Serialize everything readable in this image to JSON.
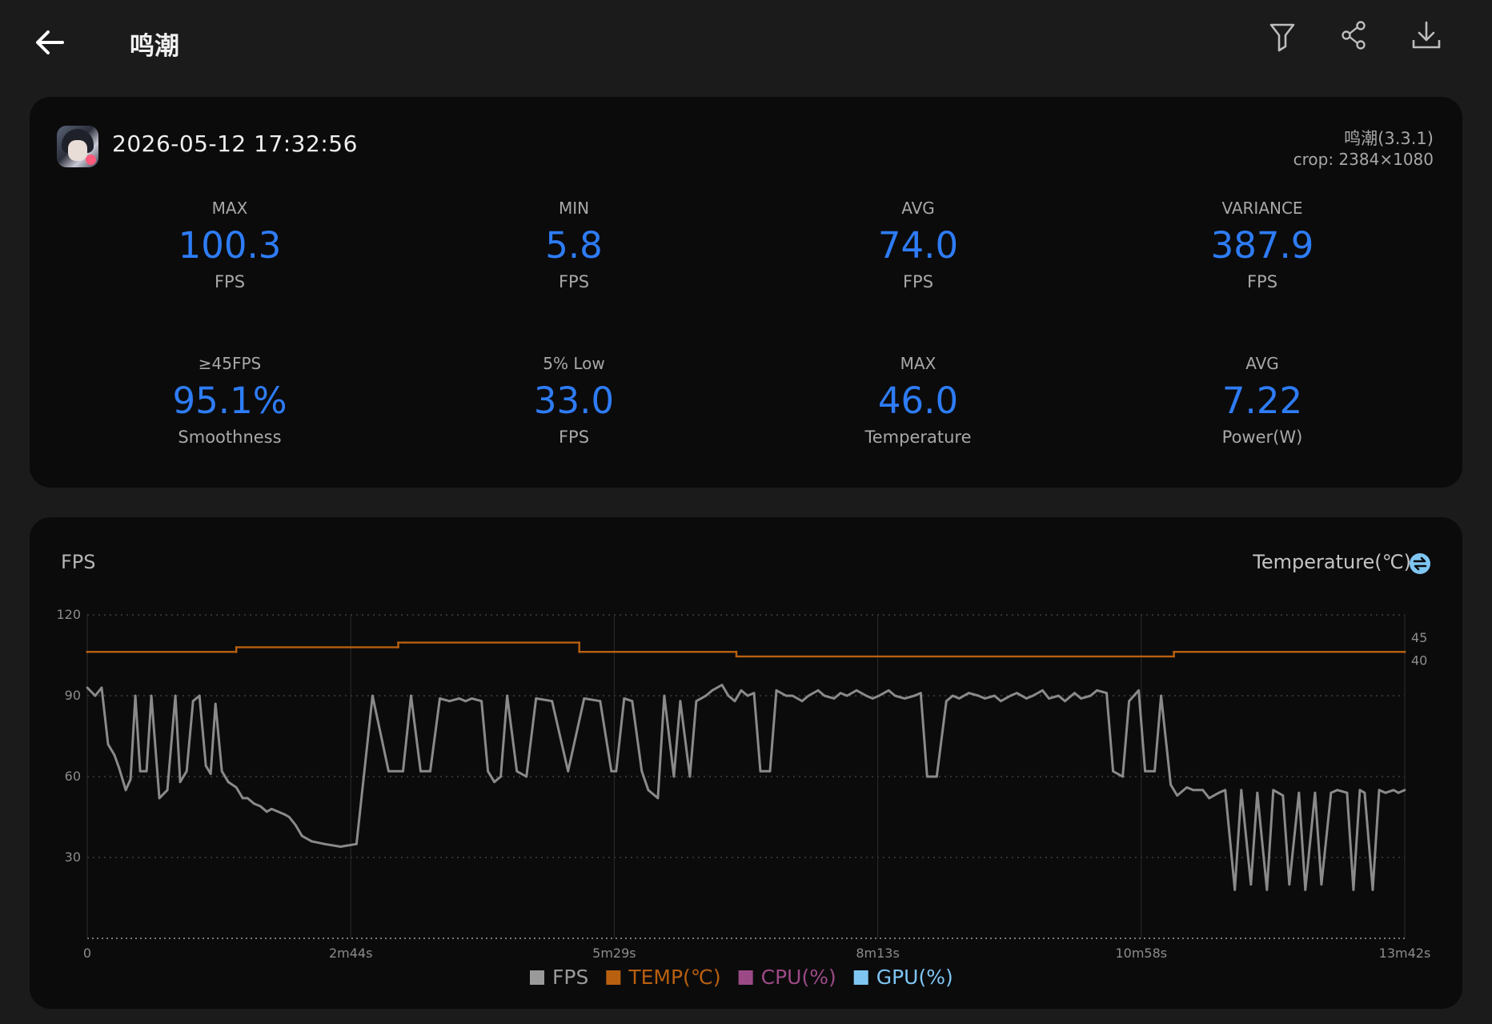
{
  "header": {
    "title": "鸣潮",
    "icons": [
      "back-arrow-icon",
      "filter-icon",
      "share-icon",
      "download-icon"
    ]
  },
  "session": {
    "timestamp": "2026-05-12 17:32:56",
    "app_version": "鸣潮(3.3.1)",
    "crop": "crop: 2384×1080"
  },
  "stats": [
    {
      "label": "MAX",
      "value": "100.3",
      "unit": "FPS"
    },
    {
      "label": "MIN",
      "value": "5.8",
      "unit": "FPS"
    },
    {
      "label": "AVG",
      "value": "74.0",
      "unit": "FPS"
    },
    {
      "label": "VARIANCE",
      "value": "387.9",
      "unit": "FPS"
    },
    {
      "label": "≥45FPS",
      "value": "95.1%",
      "unit": "Smoothness"
    },
    {
      "label": "5% Low",
      "value": "33.0",
      "unit": "FPS"
    },
    {
      "label": "MAX",
      "value": "46.0",
      "unit": "Temperature"
    },
    {
      "label": "AVG",
      "value": "7.22",
      "unit": "Power(W)"
    }
  ],
  "colors": {
    "accent": "#2e7cf6",
    "fps_line": "#8a8a8a",
    "temp_line": "#b8600f",
    "cpu": "#9c4a86",
    "gpu": "#7fc6f3"
  },
  "chart_data": {
    "type": "line",
    "left_axis_label": "FPS",
    "right_axis_label": "Temperature(℃)",
    "x_ticks": [
      "0",
      "2m44s",
      "5m29s",
      "8m13s",
      "10m58s",
      "13m42s"
    ],
    "x_range_seconds": [
      0,
      822
    ],
    "y_left_ticks": [
      "120",
      "90",
      "60",
      "30"
    ],
    "y_left_range": [
      0,
      120
    ],
    "y_right_ticks": [
      "45",
      "40"
    ],
    "y_right_range": [
      -20,
      50
    ],
    "legend": [
      {
        "name": "FPS",
        "color": "#9a9a9a"
      },
      {
        "name": "TEMP(℃)",
        "color": "#b8600f"
      },
      {
        "name": "CPU(%)",
        "color": "#9c4a86"
      },
      {
        "name": "GPU(%)",
        "color": "#7fc6f3"
      }
    ],
    "series": [
      {
        "name": "FPS",
        "x": [
          0,
          5,
          9,
          13,
          17,
          20,
          24,
          27,
          30,
          33,
          37,
          40,
          45,
          50,
          55,
          58,
          62,
          66,
          70,
          74,
          77,
          80,
          84,
          88,
          93,
          97,
          100,
          104,
          108,
          112,
          115,
          119,
          123,
          126,
          130,
          134,
          140,
          148,
          158,
          168,
          178,
          188,
          197,
          202,
          208,
          214,
          220,
          226,
          232,
          236,
          240,
          246,
          250,
          254,
          258,
          262,
          268,
          274,
          280,
          290,
          300,
          310,
          320,
          327,
          330,
          335,
          340,
          346,
          350,
          356,
          360,
          366,
          370,
          376,
          380,
          386,
          390,
          396,
          400,
          404,
          408,
          412,
          416,
          420,
          426,
          430,
          436,
          440,
          446,
          450,
          456,
          460,
          466,
          470,
          474,
          480,
          486,
          490,
          494,
          500,
          504,
          510,
          516,
          520,
          524,
          530,
          536,
          540,
          544,
          550,
          556,
          560,
          566,
          570,
          576,
          580,
          586,
          590,
          596,
          600,
          606,
          610,
          616,
          620,
          626,
          630,
          636,
          640,
          646,
          650,
          656,
          660,
          666,
          670,
          676,
          680,
          686,
          690,
          696,
          700,
          706,
          710,
          716,
          720,
          726,
          730,
          736,
          740,
          746,
          750,
          756,
          760,
          766,
          770,
          776,
          780,
          786,
          790,
          794,
          797,
          802,
          806,
          810,
          815,
          818,
          822
        ],
        "values": [
          93,
          90,
          93,
          72,
          68,
          63,
          55,
          59,
          90,
          62,
          62,
          90,
          52,
          55,
          90,
          58,
          62,
          88,
          90,
          64,
          61,
          87,
          62,
          58,
          56,
          52,
          52,
          50,
          49,
          47,
          48,
          47,
          46,
          45,
          42,
          38,
          36,
          35,
          34,
          35,
          90,
          62,
          62,
          90,
          62,
          62,
          89,
          88,
          89,
          88,
          89,
          88,
          62,
          58,
          60,
          90,
          62,
          60,
          89,
          88,
          62,
          89,
          88,
          62,
          62,
          89,
          88,
          62,
          55,
          52,
          90,
          60,
          88,
          60,
          88,
          90,
          92,
          94,
          90,
          88,
          92,
          90,
          91,
          62,
          62,
          92,
          90,
          90,
          88,
          90,
          92,
          90,
          89,
          91,
          90,
          92,
          90,
          89,
          90,
          92,
          90,
          89,
          90,
          91,
          60,
          60,
          88,
          90,
          89,
          91,
          90,
          89,
          90,
          88,
          90,
          91,
          89,
          90,
          92,
          89,
          90,
          88,
          91,
          89,
          90,
          92,
          91,
          62,
          60,
          88,
          92,
          62,
          62,
          90,
          57,
          53,
          56,
          55,
          55,
          52,
          54,
          55,
          18,
          55,
          20,
          54,
          18,
          55,
          53,
          20,
          54,
          18,
          54,
          20,
          54,
          55,
          54,
          18,
          55,
          54,
          18,
          55,
          54,
          55,
          54,
          55
        ],
        "color": "#8a8a8a"
      },
      {
        "name": "TEMP(℃)",
        "x": [
          0,
          93,
          93,
          194,
          194,
          307,
          307,
          405,
          405,
          678,
          678,
          822
        ],
        "values": [
          42,
          42,
          43,
          43,
          44,
          44,
          42,
          42,
          41,
          41,
          42,
          42
        ],
        "color": "#b8600f"
      }
    ]
  }
}
